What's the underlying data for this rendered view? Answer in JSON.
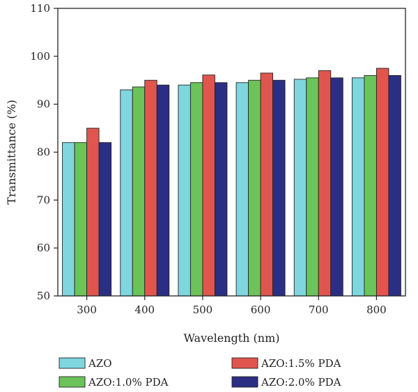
{
  "chart_data": {
    "type": "bar",
    "title": "",
    "xlabel": "Wavelength (nm)",
    "ylabel": "Transmittance (%)",
    "categories": [
      "300",
      "400",
      "500",
      "600",
      "700",
      "800"
    ],
    "ylim": [
      50,
      110
    ],
    "yticks": [
      "50",
      "60",
      "70",
      "80",
      "90",
      "100",
      "110"
    ],
    "grid": false,
    "legend_position": "bottom",
    "series": [
      {
        "name": "AZO",
        "color": "#7fd6df",
        "values": [
          82,
          93,
          94,
          94.5,
          95.2,
          95.5
        ]
      },
      {
        "name": "AZO:1.0% PDA",
        "color": "#6cc35a",
        "values": [
          82,
          93.6,
          94.5,
          95,
          95.5,
          96
        ]
      },
      {
        "name": "AZO:1.5% PDA",
        "color": "#e0564e",
        "values": [
          85,
          95,
          96.1,
          96.5,
          97,
          97.5
        ]
      },
      {
        "name": "AZO:2.0% PDA",
        "color": "#2b2f83",
        "values": [
          82,
          94,
          94.5,
          95,
          95.5,
          96
        ]
      }
    ]
  }
}
